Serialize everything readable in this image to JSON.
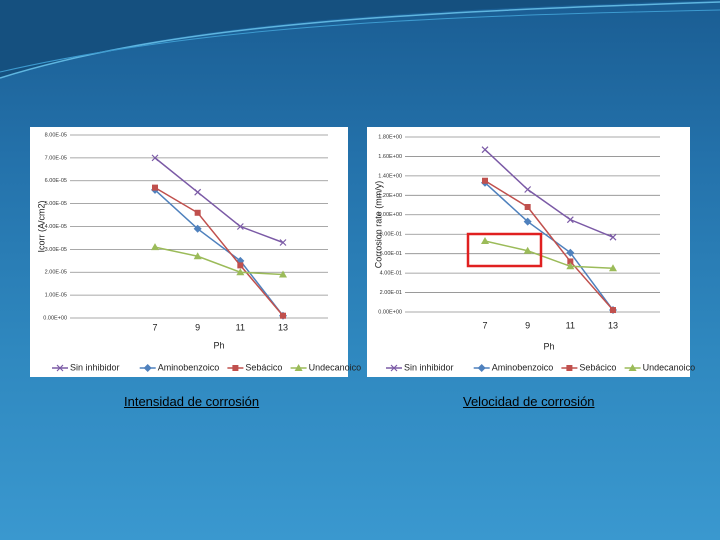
{
  "chart_data": [
    {
      "type": "line",
      "caption": "Intensidad de corrosión",
      "ylabel": "Icorr (A/cm2)",
      "xlabel": "Ph",
      "categories": [
        "7",
        "9",
        "11",
        "13"
      ],
      "ylim": [
        0,
        8e-05
      ],
      "yticks": [
        {
          "value": 0,
          "label": "0.00E+00"
        },
        {
          "value": 1e-05,
          "label": "1.00E-05"
        },
        {
          "value": 2e-05,
          "label": "2.00E-05"
        },
        {
          "value": 3e-05,
          "label": "3.00E-05"
        },
        {
          "value": 4e-05,
          "label": "4.00E-05"
        },
        {
          "value": 5e-05,
          "label": "5.00E-05"
        },
        {
          "value": 6e-05,
          "label": "6.00E-05"
        },
        {
          "value": 7e-05,
          "label": "7.00E-05"
        },
        {
          "value": 8e-05,
          "label": "8.00E-05"
        }
      ],
      "grid": true,
      "legend": "bottom",
      "series": [
        {
          "name": "Sin inhibidor",
          "color": "#7b5aa6",
          "marker": "x",
          "values": [
            7e-05,
            5.5e-05,
            4e-05,
            3.3e-05
          ]
        },
        {
          "name": "Aminobenzoico",
          "color": "#4f81bd",
          "marker": "diamond",
          "values": [
            5.6e-05,
            3.9e-05,
            2.5e-05,
            1e-06
          ]
        },
        {
          "name": "Sebácico",
          "color": "#c0504d",
          "marker": "square",
          "values": [
            5.7e-05,
            4.6e-05,
            2.3e-05,
            1e-06
          ]
        },
        {
          "name": "Undecanoico",
          "color": "#9bbb59",
          "marker": "triangle",
          "values": [
            3.1e-05,
            2.7e-05,
            2e-05,
            1.9e-05
          ]
        }
      ]
    },
    {
      "type": "line",
      "caption": "Velocidad de corrosión",
      "ylabel": "Corrosion rate (mm/y)",
      "xlabel": "Ph",
      "categories": [
        "7",
        "9",
        "11",
        "13"
      ],
      "ylim": [
        0,
        1.8
      ],
      "yticks": [
        {
          "value": 0,
          "label": "0.00E+00"
        },
        {
          "value": 0.2,
          "label": "2.00E-01"
        },
        {
          "value": 0.4,
          "label": "4.00E-01"
        },
        {
          "value": 0.6,
          "label": "6.00E-01"
        },
        {
          "value": 0.8,
          "label": "8.00E-01"
        },
        {
          "value": 1.0,
          "label": "1.00E+00"
        },
        {
          "value": 1.2,
          "label": "1.20E+00"
        },
        {
          "value": 1.4,
          "label": "1.40E+00"
        },
        {
          "value": 1.6,
          "label": "1.60E+00"
        },
        {
          "value": 1.8,
          "label": "1.80E+00"
        }
      ],
      "grid": true,
      "legend": "bottom",
      "series": [
        {
          "name": "Sin inhibidor",
          "color": "#7b5aa6",
          "marker": "x",
          "values": [
            1.67,
            1.26,
            0.95,
            0.77
          ]
        },
        {
          "name": "Aminobenzoico",
          "color": "#4f81bd",
          "marker": "diamond",
          "values": [
            1.33,
            0.93,
            0.61,
            0.02
          ]
        },
        {
          "name": "Sebácico",
          "color": "#c0504d",
          "marker": "square",
          "values": [
            1.35,
            1.08,
            0.52,
            0.02
          ]
        },
        {
          "name": "Undecanoico",
          "color": "#9bbb59",
          "marker": "triangle",
          "values": [
            0.73,
            0.63,
            0.47,
            0.45
          ]
        }
      ]
    }
  ]
}
